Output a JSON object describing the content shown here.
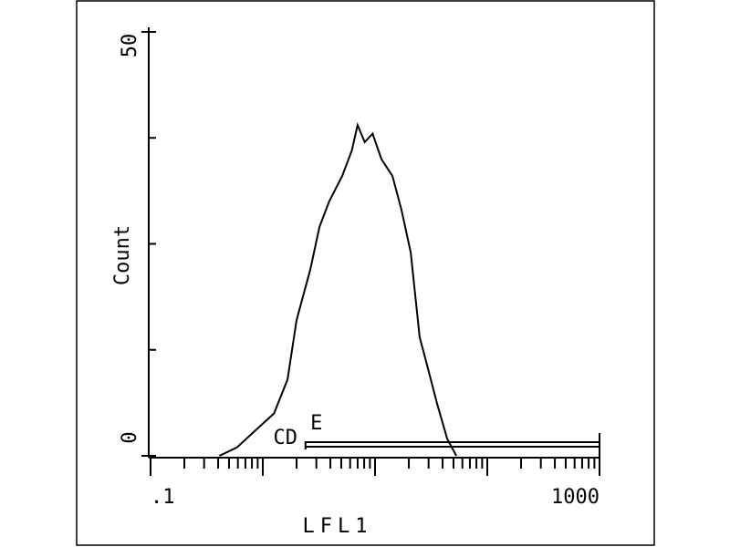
{
  "chart_data": {
    "type": "line",
    "x_label": "LFL1",
    "y_label": "Count",
    "log_x": true,
    "xlim": [
      0.1,
      1000
    ],
    "xticks": [
      {
        "value": 0.1,
        "label": ".1"
      },
      1000
    ],
    "ylim": [
      0,
      50
    ],
    "yticks": [
      0,
      50
    ],
    "series": [
      {
        "color": "#000000",
        "x": [
          0.41,
          0.59,
          0.86,
          1.26,
          1.66,
          2.0,
          2.65,
          3.2,
          3.9,
          5.1,
          6.2,
          7.0,
          8.1,
          9.5,
          11.4,
          14.3,
          17.2,
          20.8,
          25,
          30,
          36,
          44,
          53
        ],
        "values": [
          0,
          1,
          3,
          5,
          9,
          16,
          22,
          27,
          30,
          33,
          36,
          39,
          37,
          38,
          35,
          33,
          29,
          24,
          14,
          10,
          6,
          2,
          0
        ]
      }
    ],
    "gate": {
      "label": "E",
      "range": [
        2.4,
        1000
      ]
    },
    "annotations": [
      "CD"
    ]
  }
}
